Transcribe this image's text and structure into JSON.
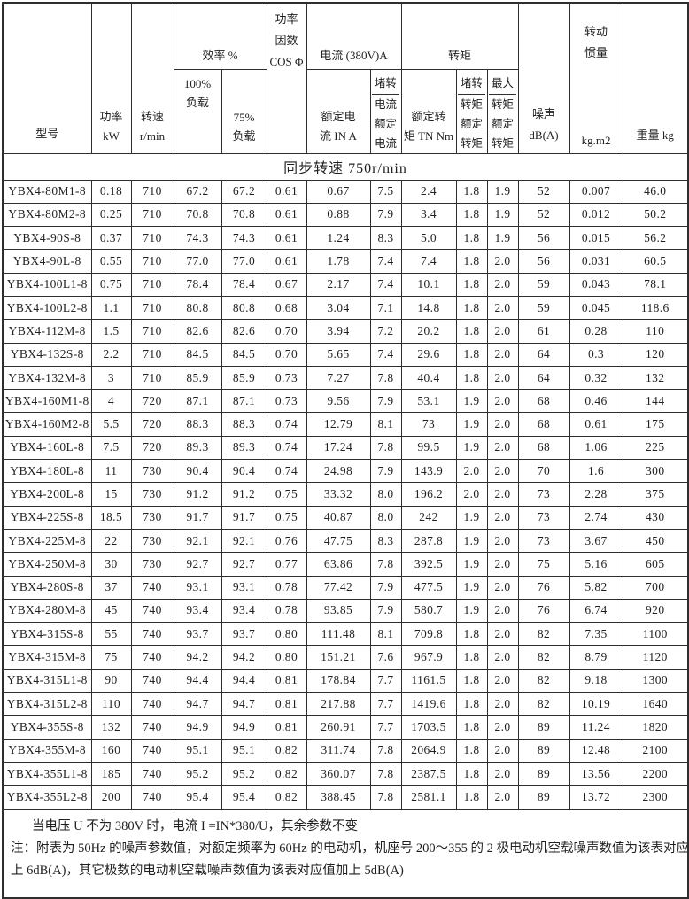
{
  "header": {
    "model": "型号",
    "power_l1": "功率",
    "power_l2": "kW",
    "speed_l1": "转速",
    "speed_l2": "r/min",
    "efficiency_group": "效率 %",
    "load100_l1": "100%",
    "load100_l2": "负载",
    "load75_l1": "75%",
    "load75_l2": "负载",
    "pf_l1": "功率",
    "pf_l2": "因数",
    "pf_l3": "COS Φ",
    "current_group": "电流 (380V)A",
    "rated_current_l1": "额定电",
    "rated_current_l2": "流 IN A",
    "locked_current": [
      "堵转",
      "电流",
      "额定",
      "电流"
    ],
    "torque_group": "转矩",
    "rated_torque_l1": "额定转",
    "rated_torque_l2": "矩 TN Nm",
    "locked_torque": [
      "堵转",
      "转矩",
      "额定",
      "转矩"
    ],
    "max_torque": [
      "最大",
      "转矩",
      "额定",
      "转矩"
    ],
    "noise_l1": "噪声",
    "noise_l2": "dB(A)",
    "inertia_l1": "转动",
    "inertia_l2": "惯量",
    "inertia_unit": "kg.m2",
    "weight": "重量 kg"
  },
  "section_title": "同步转速 750r/min",
  "rows": [
    [
      "YBX4-80M1-8",
      "0.18",
      "710",
      "67.2",
      "67.2",
      "0.61",
      "0.67",
      "7.5",
      "2.4",
      "1.8",
      "1.9",
      "52",
      "0.007",
      "46.0"
    ],
    [
      "YBX4-80M2-8",
      "0.25",
      "710",
      "70.8",
      "70.8",
      "0.61",
      "0.88",
      "7.9",
      "3.4",
      "1.8",
      "1.9",
      "52",
      "0.012",
      "50.2"
    ],
    [
      "YBX4-90S-8",
      "0.37",
      "710",
      "74.3",
      "74.3",
      "0.61",
      "1.24",
      "8.3",
      "5.0",
      "1.8",
      "1.9",
      "56",
      "0.015",
      "56.2"
    ],
    [
      "YBX4-90L-8",
      "0.55",
      "710",
      "77.0",
      "77.0",
      "0.61",
      "1.78",
      "7.4",
      "7.4",
      "1.8",
      "2.0",
      "56",
      "0.031",
      "60.5"
    ],
    [
      "YBX4-100L1-8",
      "0.75",
      "710",
      "78.4",
      "78.4",
      "0.67",
      "2.17",
      "7.4",
      "10.1",
      "1.8",
      "2.0",
      "59",
      "0.043",
      "78.1"
    ],
    [
      "YBX4-100L2-8",
      "1.1",
      "710",
      "80.8",
      "80.8",
      "0.68",
      "3.04",
      "7.1",
      "14.8",
      "1.8",
      "2.0",
      "59",
      "0.045",
      "118.6"
    ],
    [
      "YBX4-112M-8",
      "1.5",
      "710",
      "82.6",
      "82.6",
      "0.70",
      "3.94",
      "7.2",
      "20.2",
      "1.8",
      "2.0",
      "61",
      "0.28",
      "110"
    ],
    [
      "YBX4-132S-8",
      "2.2",
      "710",
      "84.5",
      "84.5",
      "0.70",
      "5.65",
      "7.4",
      "29.6",
      "1.8",
      "2.0",
      "64",
      "0.3",
      "120"
    ],
    [
      "YBX4-132M-8",
      "3",
      "710",
      "85.9",
      "85.9",
      "0.73",
      "7.27",
      "7.8",
      "40.4",
      "1.8",
      "2.0",
      "64",
      "0.32",
      "132"
    ],
    [
      "YBX4-160M1-8",
      "4",
      "720",
      "87.1",
      "87.1",
      "0.73",
      "9.56",
      "7.9",
      "53.1",
      "1.9",
      "2.0",
      "68",
      "0.46",
      "144"
    ],
    [
      "YBX4-160M2-8",
      "5.5",
      "720",
      "88.3",
      "88.3",
      "0.74",
      "12.79",
      "8.1",
      "73",
      "1.9",
      "2.0",
      "68",
      "0.61",
      "175"
    ],
    [
      "YBX4-160L-8",
      "7.5",
      "720",
      "89.3",
      "89.3",
      "0.74",
      "17.24",
      "7.8",
      "99.5",
      "1.9",
      "2.0",
      "68",
      "1.06",
      "225"
    ],
    [
      "YBX4-180L-8",
      "11",
      "730",
      "90.4",
      "90.4",
      "0.74",
      "24.98",
      "7.9",
      "143.9",
      "2.0",
      "2.0",
      "70",
      "1.6",
      "300"
    ],
    [
      "YBX4-200L-8",
      "15",
      "730",
      "91.2",
      "91.2",
      "0.75",
      "33.32",
      "8.0",
      "196.2",
      "2.0",
      "2.0",
      "73",
      "2.28",
      "375"
    ],
    [
      "YBX4-225S-8",
      "18.5",
      "730",
      "91.7",
      "91.7",
      "0.75",
      "40.87",
      "8.0",
      "242",
      "1.9",
      "2.0",
      "73",
      "2.74",
      "430"
    ],
    [
      "YBX4-225M-8",
      "22",
      "730",
      "92.1",
      "92.1",
      "0.76",
      "47.75",
      "8.3",
      "287.8",
      "1.9",
      "2.0",
      "73",
      "3.67",
      "450"
    ],
    [
      "YBX4-250M-8",
      "30",
      "730",
      "92.7",
      "92.7",
      "0.77",
      "63.86",
      "7.8",
      "392.5",
      "1.9",
      "2.0",
      "75",
      "5.16",
      "605"
    ],
    [
      "YBX4-280S-8",
      "37",
      "740",
      "93.1",
      "93.1",
      "0.78",
      "77.42",
      "7.9",
      "477.5",
      "1.9",
      "2.0",
      "76",
      "5.82",
      "700"
    ],
    [
      "YBX4-280M-8",
      "45",
      "740",
      "93.4",
      "93.4",
      "0.78",
      "93.85",
      "7.9",
      "580.7",
      "1.9",
      "2.0",
      "76",
      "6.74",
      "920"
    ],
    [
      "YBX4-315S-8",
      "55",
      "740",
      "93.7",
      "93.7",
      "0.80",
      "111.48",
      "8.1",
      "709.8",
      "1.8",
      "2.0",
      "82",
      "7.35",
      "1100"
    ],
    [
      "YBX4-315M-8",
      "75",
      "740",
      "94.2",
      "94.2",
      "0.80",
      "151.21",
      "7.6",
      "967.9",
      "1.8",
      "2.0",
      "82",
      "8.79",
      "1120"
    ],
    [
      "YBX4-315L1-8",
      "90",
      "740",
      "94.4",
      "94.4",
      "0.81",
      "178.84",
      "7.7",
      "1161.5",
      "1.8",
      "2.0",
      "82",
      "9.18",
      "1300"
    ],
    [
      "YBX4-315L2-8",
      "110",
      "740",
      "94.7",
      "94.7",
      "0.81",
      "217.88",
      "7.7",
      "1419.6",
      "1.8",
      "2.0",
      "82",
      "10.19",
      "1640"
    ],
    [
      "YBX4-355S-8",
      "132",
      "740",
      "94.9",
      "94.9",
      "0.81",
      "260.91",
      "7.7",
      "1703.5",
      "1.8",
      "2.0",
      "89",
      "11.24",
      "1820"
    ],
    [
      "YBX4-355M-8",
      "160",
      "740",
      "95.1",
      "95.1",
      "0.82",
      "311.74",
      "7.8",
      "2064.9",
      "1.8",
      "2.0",
      "89",
      "12.48",
      "2100"
    ],
    [
      "YBX4-355L1-8",
      "185",
      "740",
      "95.2",
      "95.2",
      "0.82",
      "360.07",
      "7.8",
      "2387.5",
      "1.8",
      "2.0",
      "89",
      "13.56",
      "2200"
    ],
    [
      "YBX4-355L2-8",
      "200",
      "740",
      "95.4",
      "95.4",
      "0.82",
      "388.45",
      "7.8",
      "2581.1",
      "1.8",
      "2.0",
      "89",
      "13.72",
      "2300"
    ]
  ],
  "notes": {
    "line1": "当电压 U 不为 380V 时，电流 I =IN*380/U，其余参数不变",
    "line2": "注：附表为 50Hz 的噪声参数值，对额定频率为 60Hz 的电动机，机座号 200～355 的 2 极电动机空载噪声数值为该表对应值加",
    "line3": "上 6dB(A)，其它极数的电动机空载噪声数值为该表对应值加上 5dB(A)"
  }
}
